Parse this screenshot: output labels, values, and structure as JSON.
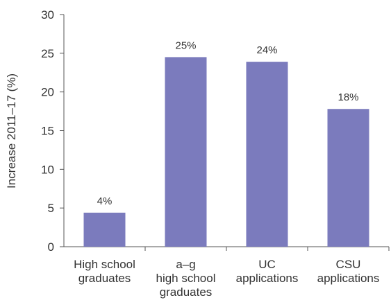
{
  "chart_data": {
    "type": "bar",
    "categories": [
      [
        "High school",
        "graduates"
      ],
      [
        "a–g",
        "high school",
        "graduates"
      ],
      [
        "UC",
        "applications"
      ],
      [
        "CSU",
        "applications"
      ]
    ],
    "values": [
      4.4,
      24.5,
      23.9,
      17.8
    ],
    "data_labels": [
      "4%",
      "25%",
      "24%",
      "18%"
    ],
    "ylabel": "Increase 2011–17 (%)",
    "ylim": [
      0,
      30
    ],
    "yticks": [
      0,
      5,
      10,
      15,
      20,
      25,
      30
    ],
    "grid": false,
    "bar_color": "#7b7bbd"
  }
}
